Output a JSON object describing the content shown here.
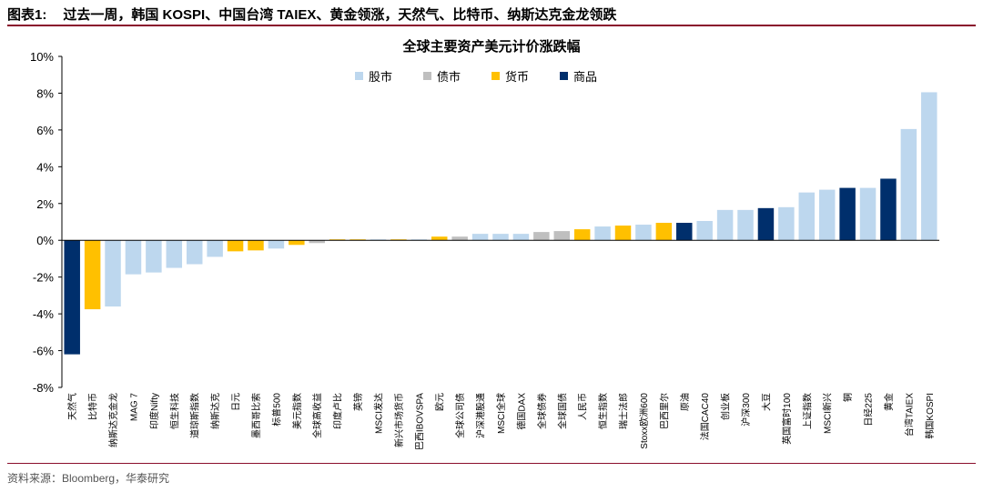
{
  "figure": {
    "number": "图表1:",
    "caption": "过去一周，韩国 KOSPI、中国台湾 TAIEX、黄金领涨，天然气、比特币、纳斯达克金龙领跌",
    "source": "资料来源：Bloomberg，华泰研究"
  },
  "colors": {
    "股市": "#bdd7ee",
    "债市": "#bfbfbf",
    "货币": "#ffc000",
    "商品": "#002f6c",
    "title_rule": "#8a0e2c"
  },
  "chart_data": {
    "type": "bar",
    "title": "全球主要资产美元计价涨跌幅",
    "ylim": [
      -8,
      10
    ],
    "yticks": [
      "-8%",
      "-6%",
      "-4%",
      "-2%",
      "0%",
      "2%",
      "4%",
      "6%",
      "8%",
      "10%"
    ],
    "legend": [
      "股市",
      "债市",
      "货币",
      "商品"
    ],
    "legend_position": "top-center",
    "grid": false,
    "categories": [
      "天然气",
      "比特币",
      "纳斯达克金龙",
      "MAG 7",
      "印度Nifty",
      "恒生科技",
      "道琼斯指数",
      "纳斯达克",
      "日元",
      "墨西哥比索",
      "标普500",
      "美元指数",
      "全球高收益",
      "印度卢比",
      "英镑",
      "MSCI发达",
      "新兴市场货币",
      "巴西IBOVSPA",
      "欧元",
      "全球公司债",
      "沪深港股通",
      "MSCI全球",
      "德国DAX",
      "全球债券",
      "全球国债",
      "人民币",
      "恒生指数",
      "瑞士法郎",
      "Stoxx欧洲600",
      "巴西里尔",
      "原油",
      "法国CAC40",
      "创业板",
      "沪深300",
      "大豆",
      "英国富时100",
      "上证指数",
      "MSCI新兴",
      "铜",
      "日经225",
      "黄金",
      "台湾TAIEX",
      "韩国KOSPI"
    ],
    "values": [
      -6.2,
      -3.75,
      -3.6,
      -1.85,
      -1.75,
      -1.5,
      -1.3,
      -0.9,
      -0.6,
      -0.55,
      -0.45,
      -0.25,
      -0.15,
      0.05,
      0.05,
      0.05,
      0.05,
      0.05,
      0.2,
      0.2,
      0.35,
      0.35,
      0.35,
      0.45,
      0.5,
      0.6,
      0.75,
      0.8,
      0.85,
      0.95,
      0.95,
      1.05,
      1.65,
      1.65,
      1.75,
      1.8,
      2.6,
      2.75,
      2.85,
      2.85,
      3.35,
      6.05,
      8.05
    ],
    "groups": [
      "商品",
      "货币",
      "股市",
      "股市",
      "股市",
      "股市",
      "股市",
      "股市",
      "货币",
      "货币",
      "股市",
      "货币",
      "债市",
      "货币",
      "货币",
      "股市",
      "货币",
      "股市",
      "货币",
      "债市",
      "股市",
      "股市",
      "股市",
      "债市",
      "债市",
      "货币",
      "股市",
      "货币",
      "股市",
      "货币",
      "商品",
      "股市",
      "股市",
      "股市",
      "商品",
      "股市",
      "股市",
      "股市",
      "商品",
      "股市",
      "商品",
      "股市",
      "股市"
    ]
  }
}
